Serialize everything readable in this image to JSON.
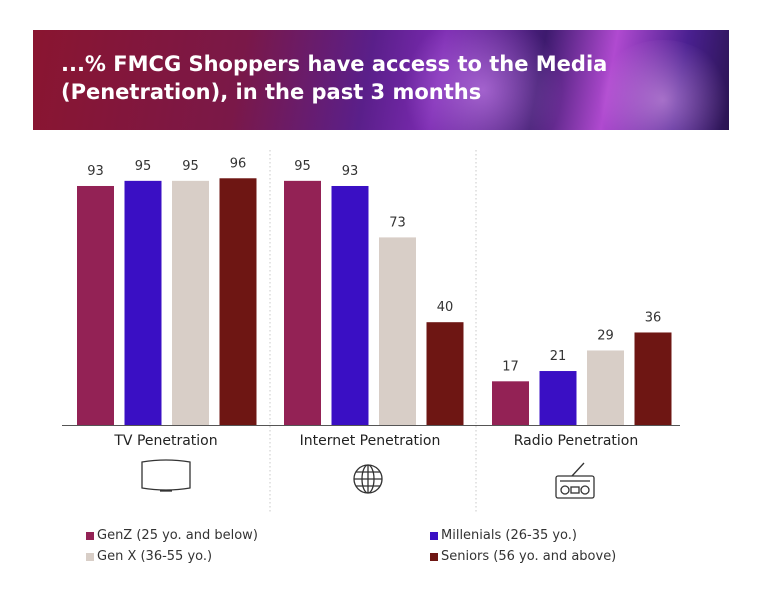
{
  "header": {
    "title_line1": "...% FMCG Shoppers have access to the Media",
    "title_line2": "(Penetration), in the past 3 months"
  },
  "chart_data": {
    "type": "bar",
    "title": "...% FMCG Shoppers have access to the Media (Penetration), in the past 3 months",
    "categories": [
      "TV Penetration",
      "Internet Penetration",
      "Radio Penetration"
    ],
    "category_icons": [
      "tv-icon",
      "globe-icon",
      "radio-icon"
    ],
    "series": [
      {
        "name": "GenZ (25 yo. and below)",
        "color": "#932255",
        "values": [
          93,
          95,
          17
        ]
      },
      {
        "name": "Millenials (26-35 yo.)",
        "color": "#3a0fc4",
        "values": [
          95,
          93,
          21
        ]
      },
      {
        "name": "Gen X (36-55 yo.)",
        "color": "#d8cec7",
        "values": [
          95,
          73,
          29
        ]
      },
      {
        "name": "Seniors (56 yo. and above)",
        "color": "#6e1613",
        "values": [
          96,
          40,
          36
        ]
      }
    ],
    "ylim": [
      0,
      100
    ],
    "grid": false,
    "legend_position": "bottom"
  }
}
